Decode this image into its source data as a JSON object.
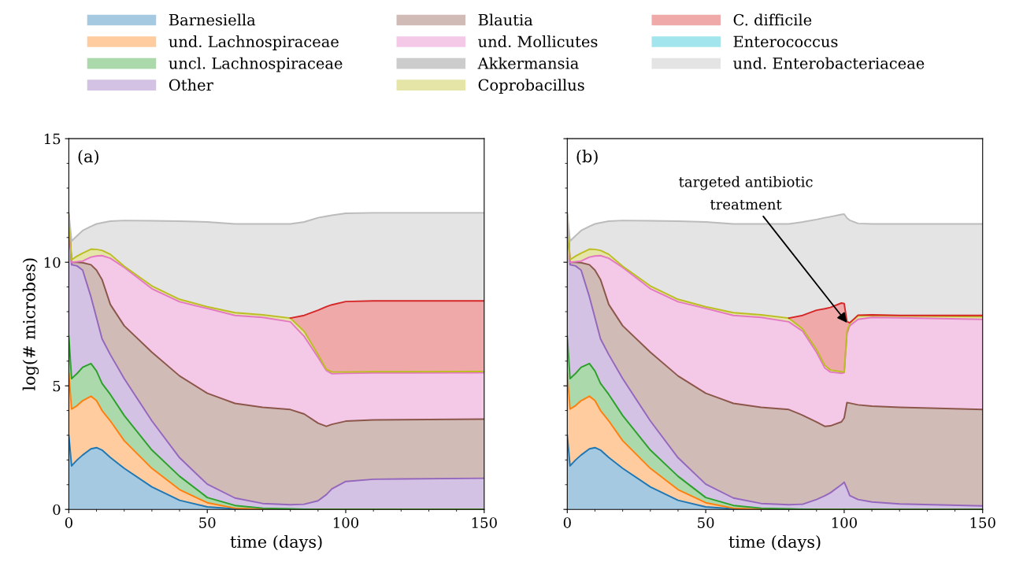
{
  "chart_data": [
    {
      "type": "area",
      "stacked": true,
      "legend": "top",
      "xlabel": "time (days)",
      "ylabel": "log(# microbes)",
      "annotations": [
        "(a)"
      ],
      "xlim": [
        0,
        150
      ],
      "ylim": [
        0,
        15
      ],
      "xticks": [
        0,
        {
          "value": 10,
          "label": null
        },
        {
          "value": 20,
          "label": null
        },
        {
          "value": 30,
          "label": null
        },
        {
          "value": 40,
          "label": null
        },
        50,
        {
          "value": 60,
          "label": null
        },
        {
          "value": 70,
          "label": null
        },
        {
          "value": 80,
          "label": null
        },
        {
          "value": 90,
          "label": null
        },
        100,
        {
          "value": 110,
          "label": null
        },
        {
          "value": 120,
          "label": null
        },
        {
          "value": 130,
          "label": null
        },
        {
          "value": 140,
          "label": null
        },
        150
      ],
      "yticks": [
        0,
        {
          "value": 1,
          "label": null
        },
        {
          "value": 2,
          "label": null
        },
        {
          "value": 3,
          "label": null
        },
        {
          "value": 4,
          "label": null
        },
        5,
        {
          "value": 6,
          "label": null
        },
        {
          "value": 7,
          "label": null
        },
        {
          "value": 8,
          "label": null
        },
        {
          "value": 9,
          "label": null
        },
        10,
        {
          "value": 11,
          "label": null
        },
        {
          "value": 12,
          "label": null
        },
        {
          "value": 13,
          "label": null
        },
        {
          "value": 14,
          "label": null
        },
        15
      ],
      "x": [
        0,
        1,
        3,
        5,
        8,
        10,
        12,
        15,
        20,
        30,
        40,
        50,
        60,
        70,
        80,
        85,
        90,
        93,
        95,
        100,
        110,
        150
      ],
      "series": [
        {
          "name": "Barnesiella",
          "color": "#1f77b4",
          "values": [
            3.0,
            1.76,
            2.0,
            2.2,
            2.45,
            2.5,
            2.4,
            2.1,
            1.66,
            0.91,
            0.37,
            0.1,
            0.02,
            0,
            0,
            0,
            0,
            0,
            0,
            0,
            0,
            0
          ]
        },
        {
          "name": "und. Lachnospiraceae",
          "color": "#ff7f0e",
          "values": [
            2.5,
            2.3,
            2.2,
            2.2,
            2.13,
            1.9,
            1.6,
            1.48,
            1.12,
            0.75,
            0.43,
            0.17,
            0.03,
            0,
            0,
            0,
            0,
            0,
            0,
            0,
            0,
            0
          ]
        },
        {
          "name": "uncl. Lachnospiraceae",
          "color": "#2ca02c",
          "values": [
            1.5,
            1.23,
            1.3,
            1.35,
            1.32,
            1.2,
            1.1,
            1.07,
            1.02,
            0.74,
            0.54,
            0.21,
            0.11,
            0.05,
            0.02,
            0.01,
            0,
            0,
            0,
            0,
            0,
            0
          ]
        },
        {
          "name": "Other",
          "color": "#9467bd",
          "values": [
            4.8,
            4.61,
            4.35,
            3.93,
            2.7,
            2.15,
            1.8,
            1.61,
            1.49,
            1.18,
            0.75,
            0.54,
            0.3,
            0.19,
            0.17,
            0.2,
            0.35,
            0.6,
            0.83,
            1.13,
            1.22,
            1.26
          ]
        },
        {
          "name": "Blautia",
          "color": "#8c564b",
          "values": [
            0.05,
            0.1,
            0.15,
            0.3,
            1.3,
            1.93,
            2.4,
            2.03,
            2.14,
            2.78,
            3.31,
            3.68,
            3.83,
            3.89,
            3.85,
            3.65,
            3.14,
            2.76,
            2.61,
            2.44,
            2.4,
            2.39
          ]
        },
        {
          "name": "und. Mollicutes",
          "color": "#e377c2",
          "values": [
            0.05,
            0,
            0.02,
            0.07,
            0.31,
            0.57,
            0.97,
            1.87,
            2.36,
            2.57,
            3.0,
            3.43,
            3.56,
            3.64,
            3.55,
            3.14,
            2.66,
            2.26,
            2.05,
            1.94,
            1.9,
            1.88
          ]
        },
        {
          "name": "Akkermansia",
          "color": "#7f7f7f",
          "values": [
            null,
            null,
            null,
            null,
            null,
            null,
            null,
            null,
            null,
            null,
            null,
            null,
            null,
            null,
            null,
            null,
            null,
            null,
            null,
            null,
            null,
            null
          ]
        },
        {
          "name": "Coprobacillus",
          "color": "#bcbd22",
          "values": [
            0.05,
            0.1,
            0.23,
            0.32,
            0.32,
            0.27,
            0.21,
            0.16,
            0.05,
            0.11,
            0.1,
            0.07,
            0.11,
            0.1,
            0.15,
            0.2,
            0.11,
            0.05,
            0.07,
            0.05,
            0.05,
            0.05
          ]
        },
        {
          "name": "C. difficile",
          "color": "#d62728",
          "values": [
            null,
            null,
            null,
            null,
            null,
            null,
            null,
            null,
            null,
            null,
            null,
            null,
            null,
            null,
            0,
            0.65,
            1.8,
            2.53,
            2.72,
            2.85,
            2.87,
            2.86
          ]
        },
        {
          "name": "Enterococcus",
          "color": "#17becf",
          "values": [
            null,
            null,
            null,
            null,
            null,
            null,
            null,
            null,
            null,
            null,
            null,
            null,
            null,
            null,
            null,
            null,
            null,
            null,
            null,
            null,
            null,
            null
          ]
        },
        {
          "name": "und. Enterobacteriaceae",
          "color": "#bbbbbb",
          "values": [
            0.05,
            0.76,
            0.82,
            0.91,
            0.92,
            1.03,
            1.12,
            1.34,
            1.85,
            2.64,
            3.16,
            3.43,
            3.59,
            3.68,
            3.81,
            3.78,
            3.74,
            3.66,
            3.62,
            3.57,
            3.56,
            3.56
          ]
        }
      ]
    },
    {
      "type": "area",
      "stacked": true,
      "xlabel": "time (days)",
      "tick_labels": "x",
      "annotations": [
        "(b)",
        {
          "text": "targeted antibiotic\ntreatment",
          "x": 101,
          "y": 7.55
        }
      ],
      "legend": "top",
      "xlim": [
        0,
        150
      ],
      "ylim": [
        0,
        15
      ],
      "xticks": [
        0,
        {
          "value": 10,
          "label": null
        },
        {
          "value": 20,
          "label": null
        },
        {
          "value": 30,
          "label": null
        },
        {
          "value": 40,
          "label": null
        },
        50,
        {
          "value": 60,
          "label": null
        },
        {
          "value": 70,
          "label": null
        },
        {
          "value": 80,
          "label": null
        },
        {
          "value": 90,
          "label": null
        },
        100,
        {
          "value": 110,
          "label": null
        },
        {
          "value": 120,
          "label": null
        },
        {
          "value": 130,
          "label": null
        },
        {
          "value": 140,
          "label": null
        },
        150
      ],
      "yticks": [
        0,
        {
          "value": 1,
          "label": null
        },
        {
          "value": 2,
          "label": null
        },
        {
          "value": 3,
          "label": null
        },
        {
          "value": 4,
          "label": null
        },
        5,
        {
          "value": 6,
          "label": null
        },
        {
          "value": 7,
          "label": null
        },
        {
          "value": 8,
          "label": null
        },
        {
          "value": 9,
          "label": null
        },
        10,
        {
          "value": 11,
          "label": null
        },
        {
          "value": 12,
          "label": null
        },
        {
          "value": 13,
          "label": null
        },
        {
          "value": 14,
          "label": null
        },
        15
      ],
      "x": [
        0,
        1,
        3,
        5,
        8,
        10,
        12,
        15,
        20,
        30,
        40,
        50,
        60,
        70,
        80,
        85,
        90,
        93,
        95,
        99,
        100,
        101,
        102,
        105,
        110,
        120,
        150
      ],
      "series": [
        {
          "name": "Barnesiella",
          "color": "#1f77b4",
          "values": [
            3.0,
            1.76,
            2.0,
            2.2,
            2.45,
            2.5,
            2.4,
            2.1,
            1.66,
            0.91,
            0.37,
            0.1,
            0.02,
            0,
            0,
            0,
            0,
            0,
            0,
            0,
            0,
            0,
            0,
            0,
            0,
            0,
            0
          ]
        },
        {
          "name": "und. Lachnospiraceae",
          "color": "#ff7f0e",
          "values": [
            2.5,
            2.3,
            2.2,
            2.2,
            2.13,
            1.9,
            1.6,
            1.48,
            1.12,
            0.75,
            0.43,
            0.17,
            0.03,
            0,
            0,
            0,
            0,
            0,
            0,
            0,
            0,
            0,
            0,
            0,
            0,
            0,
            0
          ]
        },
        {
          "name": "uncl. Lachnospiraceae",
          "color": "#2ca02c",
          "values": [
            1.5,
            1.23,
            1.3,
            1.35,
            1.32,
            1.2,
            1.1,
            1.07,
            1.02,
            0.74,
            0.54,
            0.21,
            0.11,
            0.05,
            0.02,
            0.01,
            0,
            0,
            0,
            0,
            0,
            0,
            0,
            0,
            0,
            0,
            0
          ]
        },
        {
          "name": "Other",
          "color": "#9467bd",
          "values": [
            4.8,
            4.61,
            4.35,
            3.93,
            2.7,
            2.15,
            1.8,
            1.61,
            1.49,
            1.18,
            0.75,
            0.54,
            0.3,
            0.19,
            0.17,
            0.2,
            0.4,
            0.55,
            0.67,
            1.0,
            1.1,
            0.85,
            0.56,
            0.4,
            0.3,
            0.22,
            0.14
          ]
        },
        {
          "name": "Blautia",
          "color": "#8c564b",
          "values": [
            0.05,
            0.1,
            0.15,
            0.3,
            1.3,
            1.93,
            2.4,
            2.03,
            2.14,
            2.78,
            3.31,
            3.68,
            3.83,
            3.89,
            3.85,
            3.6,
            3.14,
            2.81,
            2.71,
            2.54,
            2.6,
            3.47,
            3.74,
            3.83,
            3.88,
            3.91,
            3.9
          ]
        },
        {
          "name": "und. Mollicutes",
          "color": "#e377c2",
          "values": [
            0.05,
            0,
            0.02,
            0.07,
            0.31,
            0.57,
            0.97,
            1.87,
            2.36,
            2.57,
            3.0,
            3.43,
            3.56,
            3.64,
            3.55,
            3.4,
            2.82,
            2.36,
            2.18,
            1.97,
            1.83,
            2.79,
            3.13,
            3.46,
            3.59,
            3.62,
            3.65
          ]
        },
        {
          "name": "Coprobacillus",
          "color": "#bcbd22",
          "values": [
            0.05,
            0.1,
            0.23,
            0.32,
            0.32,
            0.27,
            0.21,
            0.16,
            0.05,
            0.11,
            0.1,
            0.07,
            0.11,
            0.1,
            0.15,
            0.09,
            0.11,
            0.11,
            0.08,
            0.06,
            0.03,
            0.09,
            0.1,
            0.14,
            0.08,
            0.08,
            0.11
          ]
        },
        {
          "name": "C. difficile",
          "color": "#d62728",
          "values": [
            null,
            null,
            null,
            null,
            null,
            null,
            null,
            null,
            null,
            null,
            null,
            null,
            null,
            null,
            0,
            0.55,
            1.59,
            2.29,
            2.53,
            2.78,
            2.77,
            0.4,
            0.02,
            0.03,
            0.02,
            0.02,
            0.05
          ]
        },
        {
          "name": "und. Enterobacteriaceae",
          "color": "#bbbbbb",
          "values": [
            0.05,
            0.76,
            0.82,
            0.91,
            0.92,
            1.03,
            1.12,
            1.34,
            1.85,
            2.64,
            3.16,
            3.43,
            3.59,
            3.68,
            3.81,
            3.78,
            3.67,
            3.68,
            3.67,
            3.58,
            3.62,
            4.19,
            4.15,
            3.71,
            3.68,
            3.7,
            3.7
          ]
        }
      ]
    }
  ]
}
